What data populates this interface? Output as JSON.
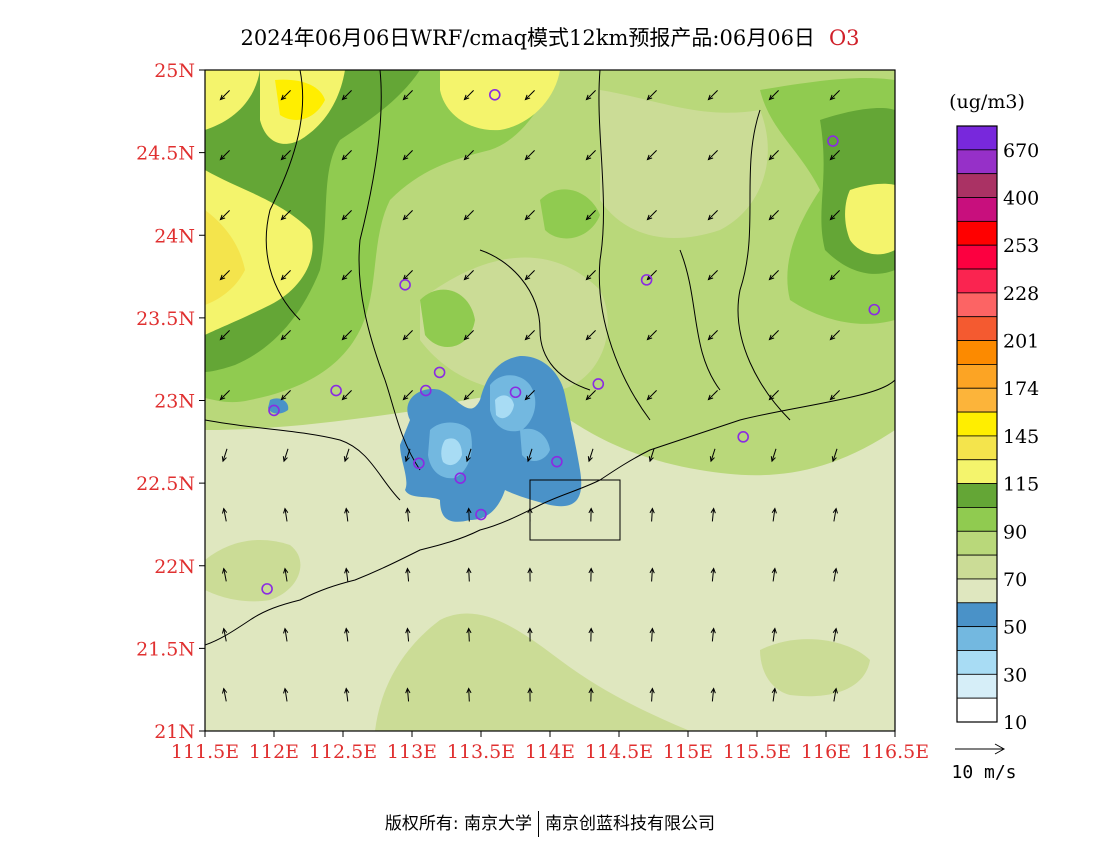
{
  "title": {
    "main": "2024年06月06日WRF/cmaq模式12km预报产品:06月06日",
    "species": "O3"
  },
  "map": {
    "lon_range": [
      111.5,
      116.5
    ],
    "lat_range": [
      21,
      25
    ],
    "x_ticks": [
      "111.5E",
      "112E",
      "112.5E",
      "113E",
      "113.5E",
      "114E",
      "114.5E",
      "115E",
      "115.5E",
      "116E",
      "116.5E"
    ],
    "y_ticks": [
      "21N",
      "21.5N",
      "22N",
      "22.5N",
      "23N",
      "23.5N",
      "24N",
      "24.5N",
      "25N"
    ],
    "tick_color": "#e03030",
    "stations_lonlat": [
      [
        113.6,
        24.85
      ],
      [
        116.05,
        24.57
      ],
      [
        112.95,
        23.7
      ],
      [
        114.7,
        23.73
      ],
      [
        116.35,
        23.55
      ],
      [
        112.45,
        23.06
      ],
      [
        112.0,
        22.94
      ],
      [
        113.1,
        23.06
      ],
      [
        113.2,
        23.17
      ],
      [
        113.75,
        23.05
      ],
      [
        114.35,
        23.1
      ],
      [
        115.4,
        22.78
      ],
      [
        113.05,
        22.62
      ],
      [
        113.35,
        22.53
      ],
      [
        114.05,
        22.63
      ],
      [
        113.5,
        22.31
      ],
      [
        111.95,
        21.86
      ]
    ]
  },
  "legend": {
    "unit": "(ug/m3)",
    "colors": [
      "#ffffff",
      "#d6eef8",
      "#a8dcf4",
      "#73b8e0",
      "#4a92c8",
      "#dfe7bf",
      "#cbdc96",
      "#b9d87a",
      "#90cb50",
      "#64a636",
      "#f4f46c",
      "#f4e44c",
      "#ffee00",
      "#fcb43a",
      "#fca424",
      "#fc8a00",
      "#f45a30",
      "#fc6464",
      "#fa2450",
      "#fc0040",
      "#ff0000",
      "#c80f7d",
      "#aa3264",
      "#9630c8",
      "#7828dc"
    ],
    "labels": [
      "10",
      "30",
      "50",
      "70",
      "90",
      "115",
      "145",
      "174",
      "201",
      "228",
      "253",
      "400",
      "670"
    ],
    "wind_label": "10 m/s"
  },
  "footer": {
    "left": "版权所有: 南京大学",
    "right": "南京创蓝科技有限公司"
  }
}
